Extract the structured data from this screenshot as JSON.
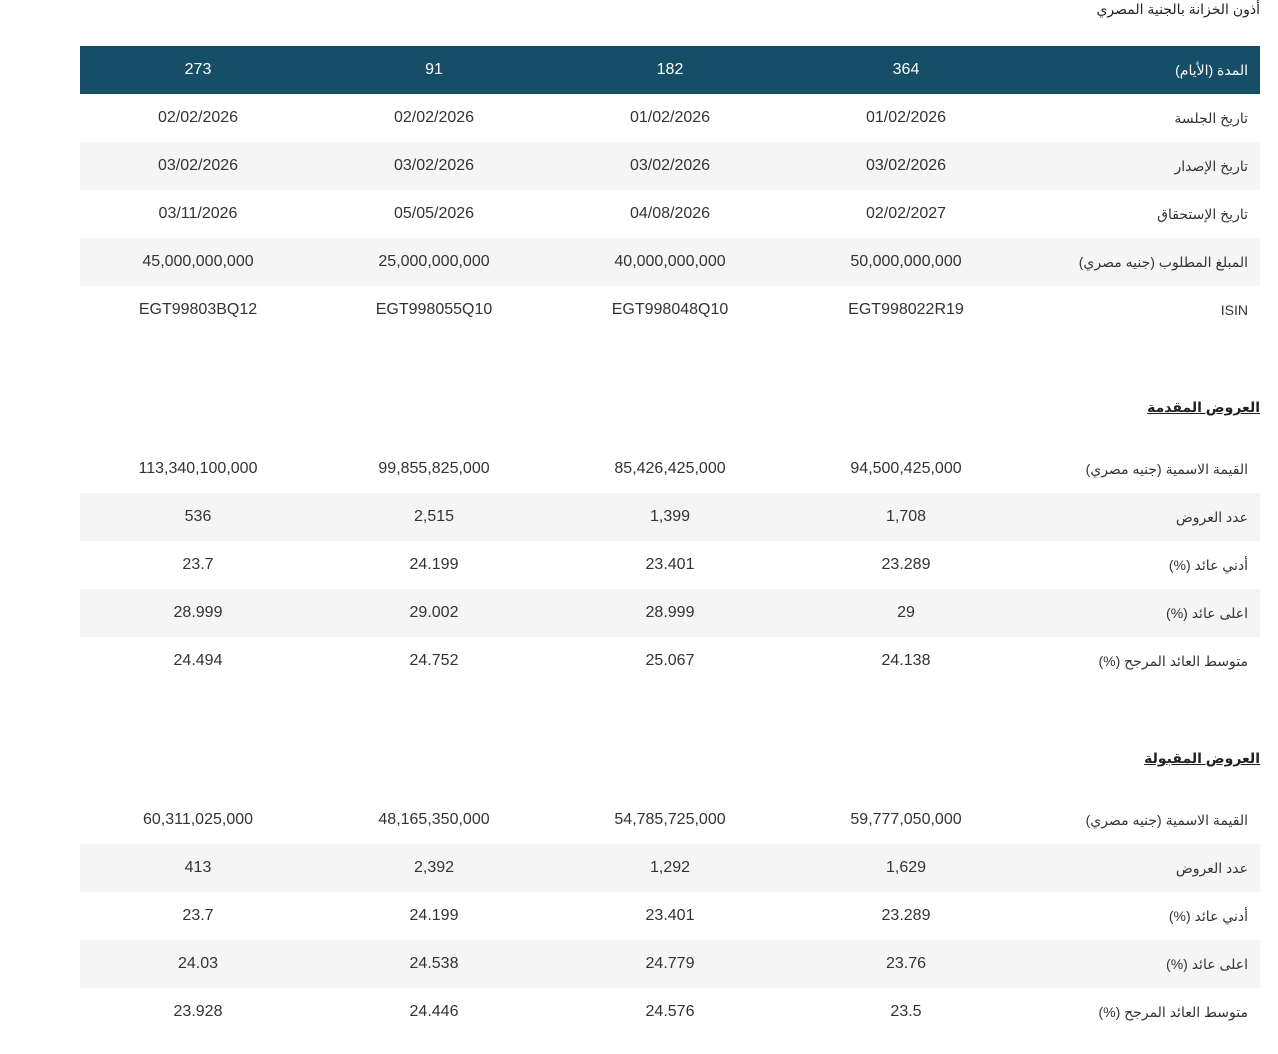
{
  "page_title": "أذون الخزانة بالجنية المصري",
  "main_table": {
    "header": {
      "label": "المدة (الأيام)",
      "values": [
        "364",
        "182",
        "91",
        "273"
      ]
    },
    "rows": [
      {
        "label": "تاريخ الجلسة",
        "values": [
          "01/02/2026",
          "01/02/2026",
          "02/02/2026",
          "02/02/2026"
        ]
      },
      {
        "label": "تاريخ الإصدار",
        "values": [
          "03/02/2026",
          "03/02/2026",
          "03/02/2026",
          "03/02/2026"
        ]
      },
      {
        "label": "تاريخ الإستحقاق",
        "values": [
          "02/02/2027",
          "04/08/2026",
          "05/05/2026",
          "03/11/2026"
        ]
      },
      {
        "label": "المبلغ المطلوب (جنيه مصري)",
        "values": [
          "50,000,000,000",
          "40,000,000,000",
          "25,000,000,000",
          "45,000,000,000"
        ]
      },
      {
        "label": "ISIN",
        "values": [
          "EGT998022R19",
          "EGT998048Q10",
          "EGT998055Q10",
          "EGT99803BQ12"
        ]
      }
    ]
  },
  "offered": {
    "title": "العروض المقدمة",
    "rows": [
      {
        "label": "القيمة الاسمية (جنيه مصري)",
        "values": [
          "94,500,425,000",
          "85,426,425,000",
          "99,855,825,000",
          "113,340,100,000"
        ]
      },
      {
        "label": "عدد العروض",
        "values": [
          "1,708",
          "1,399",
          "2,515",
          "536"
        ]
      },
      {
        "label": "أدني عائد (%)",
        "values": [
          "23.289",
          "23.401",
          "24.199",
          "23.7"
        ]
      },
      {
        "label": "اعلى عائد (%)",
        "values": [
          "29",
          "28.999",
          "29.002",
          "28.999"
        ]
      },
      {
        "label": "متوسط العائد المرجح (%)",
        "values": [
          "24.138",
          "25.067",
          "24.752",
          "24.494"
        ]
      }
    ]
  },
  "accepted": {
    "title": "العروض المقبولة",
    "rows": [
      {
        "label": "القيمة الاسمية (جنيه مصري)",
        "values": [
          "59,777,050,000",
          "54,785,725,000",
          "48,165,350,000",
          "60,311,025,000"
        ]
      },
      {
        "label": "عدد العروض",
        "values": [
          "1,629",
          "1,292",
          "2,392",
          "413"
        ]
      },
      {
        "label": "أدني عائد (%)",
        "values": [
          "23.289",
          "23.401",
          "24.199",
          "23.7"
        ]
      },
      {
        "label": "اعلى عائد (%)",
        "values": [
          "23.76",
          "24.779",
          "24.538",
          "24.03"
        ]
      },
      {
        "label": "متوسط العائد المرجح (%)",
        "values": [
          "23.5",
          "24.576",
          "24.446",
          "23.928"
        ]
      }
    ]
  },
  "colors": {
    "header_bg": "#164d67",
    "alt_row_bg": "#f5f5f6"
  }
}
